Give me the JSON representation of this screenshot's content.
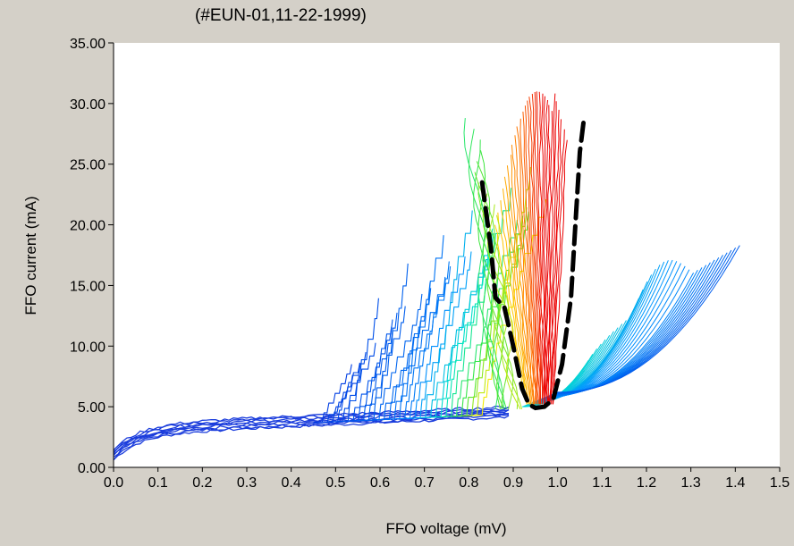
{
  "chart_data": {
    "type": "line",
    "title": "(#EUN-01,11-22-1999)",
    "xlabel": "FFO voltage (mV)",
    "ylabel": "FFO current (mA)",
    "xlim": [
      0.0,
      1.5
    ],
    "ylim": [
      0.0,
      35.0
    ],
    "x_ticks": [
      "0.0",
      "0.1",
      "0.2",
      "0.3",
      "0.4",
      "0.5",
      "0.6",
      "0.7",
      "0.8",
      "0.9",
      "1.0",
      "1.1",
      "1.2",
      "1.3",
      "1.4",
      "1.5"
    ],
    "y_ticks": [
      "0.00",
      "5.00",
      "10.00",
      "15.00",
      "20.00",
      "25.00",
      "30.00",
      "35.00"
    ],
    "grid": false,
    "legend": "none",
    "description_series": "Family of FFO current-voltage curves color-coded from blue (low) through green/yellow to red (high intensity), with a dashed black boundary enclosing the red region.",
    "common_branch": {
      "x": [
        0.0,
        0.05,
        0.1,
        0.2,
        0.3,
        0.4,
        0.5,
        0.6,
        0.7,
        0.8,
        0.9
      ],
      "y": [
        1.2,
        2.0,
        2.5,
        3.0,
        3.2,
        3.4,
        3.6,
        3.8,
        4.0,
        4.3,
        4.7
      ]
    },
    "steps_region": {
      "x_start": 0.45,
      "x_end": 0.83,
      "max_current": 21.5
    },
    "fan_region": {
      "x_start": 0.85,
      "x_end": 1.41,
      "top_end_current": 18.3
    },
    "red_region_peak": {
      "x": 1.02,
      "y": 31.5
    },
    "dashed_boundary": {
      "x": [
        0.83,
        0.85,
        0.86,
        0.88,
        0.9,
        0.92,
        0.935,
        0.95,
        0.97,
        0.99,
        1.01,
        1.03,
        1.04,
        1.05,
        1.06
      ],
      "y": [
        23.5,
        18.0,
        14.0,
        13.2,
        10.0,
        6.5,
        5.2,
        4.9,
        5.0,
        5.6,
        8.5,
        14.0,
        20.0,
        26.0,
        29.0
      ]
    }
  }
}
